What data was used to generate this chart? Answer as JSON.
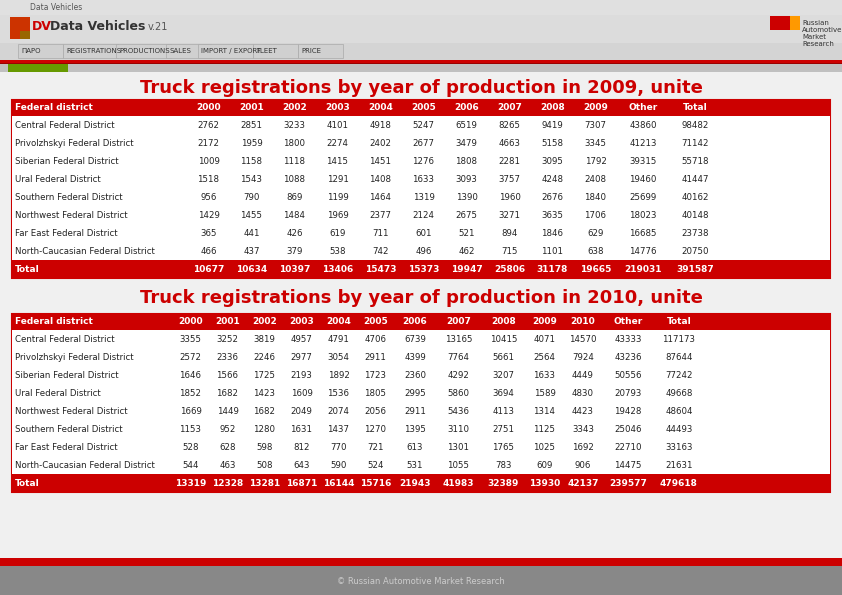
{
  "title1": "Truck registrations by year of production in 2009, unite",
  "title2": "Truck registrations by year of production in 2010, unite",
  "header_bg": "#CC0000",
  "header_text_color": "#FFFFFF",
  "total_bg": "#CC0000",
  "total_text_color": "#FFFFFF",
  "title_color": "#CC0000",
  "columns2009": [
    "Federal district",
    "2000",
    "2001",
    "2002",
    "2003",
    "2004",
    "2005",
    "2006",
    "2007",
    "2008",
    "2009",
    "Other",
    "Total"
  ],
  "columns2010": [
    "Federal district",
    "2000",
    "2001",
    "2002",
    "2003",
    "2004",
    "2005",
    "2006",
    "2007",
    "2008",
    "2009",
    "2010",
    "Other",
    "Total"
  ],
  "rows2009": [
    [
      "Central Federal District",
      "2762",
      "2851",
      "3233",
      "4101",
      "4918",
      "5247",
      "6519",
      "8265",
      "9419",
      "7307",
      "43860",
      "98482"
    ],
    [
      "Privolzhskyi Federal District",
      "2172",
      "1959",
      "1800",
      "2274",
      "2402",
      "2677",
      "3479",
      "4663",
      "5158",
      "3345",
      "41213",
      "71142"
    ],
    [
      "Siberian Federal District",
      "1009",
      "1158",
      "1118",
      "1415",
      "1451",
      "1276",
      "1808",
      "2281",
      "3095",
      "1792",
      "39315",
      "55718"
    ],
    [
      "Ural Federal District",
      "1518",
      "1543",
      "1088",
      "1291",
      "1408",
      "1633",
      "3093",
      "3757",
      "4248",
      "2408",
      "19460",
      "41447"
    ],
    [
      "Southern Federal District",
      "956",
      "790",
      "869",
      "1199",
      "1464",
      "1319",
      "1390",
      "1960",
      "2676",
      "1840",
      "25699",
      "40162"
    ],
    [
      "Northwest Federal District",
      "1429",
      "1455",
      "1484",
      "1969",
      "2377",
      "2124",
      "2675",
      "3271",
      "3635",
      "1706",
      "18023",
      "40148"
    ],
    [
      "Far East Federal District",
      "365",
      "441",
      "426",
      "619",
      "711",
      "601",
      "521",
      "894",
      "1846",
      "629",
      "16685",
      "23738"
    ],
    [
      "North-Caucasian Federal District",
      "466",
      "437",
      "379",
      "538",
      "742",
      "496",
      "462",
      "715",
      "1101",
      "638",
      "14776",
      "20750"
    ]
  ],
  "total2009": [
    "Total",
    "10677",
    "10634",
    "10397",
    "13406",
    "15473",
    "15373",
    "19947",
    "25806",
    "31178",
    "19665",
    "219031",
    "391587"
  ],
  "rows2010": [
    [
      "Central Federal District",
      "3355",
      "3252",
      "3819",
      "4957",
      "4791",
      "4706",
      "6739",
      "13165",
      "10415",
      "4071",
      "14570",
      "43333",
      "117173"
    ],
    [
      "Privolzhskyi Federal District",
      "2572",
      "2336",
      "2246",
      "2977",
      "3054",
      "2911",
      "4399",
      "7764",
      "5661",
      "2564",
      "7924",
      "43236",
      "87644"
    ],
    [
      "Siberian Federal District",
      "1646",
      "1566",
      "1725",
      "2193",
      "1892",
      "1723",
      "2360",
      "4292",
      "3207",
      "1633",
      "4449",
      "50556",
      "77242"
    ],
    [
      "Ural Federal District",
      "1852",
      "1682",
      "1423",
      "1609",
      "1536",
      "1805",
      "2995",
      "5860",
      "3694",
      "1589",
      "4830",
      "20793",
      "49668"
    ],
    [
      "Northwest Federal District",
      "1669",
      "1449",
      "1682",
      "2049",
      "2074",
      "2056",
      "2911",
      "5436",
      "4113",
      "1314",
      "4423",
      "19428",
      "48604"
    ],
    [
      "Southern Federal District",
      "1153",
      "952",
      "1280",
      "1631",
      "1437",
      "1270",
      "1395",
      "3110",
      "2751",
      "1125",
      "3343",
      "25046",
      "44493"
    ],
    [
      "Far East Federal District",
      "528",
      "628",
      "598",
      "812",
      "770",
      "721",
      "613",
      "1301",
      "1765",
      "1025",
      "1692",
      "22710",
      "33163"
    ],
    [
      "North-Caucasian Federal District",
      "544",
      "463",
      "508",
      "643",
      "590",
      "524",
      "531",
      "1055",
      "783",
      "609",
      "906",
      "14475",
      "21631"
    ]
  ],
  "total2010": [
    "Total",
    "13319",
    "12328",
    "13281",
    "16871",
    "16144",
    "15716",
    "21943",
    "41983",
    "32389",
    "13930",
    "42137",
    "239577",
    "479618"
  ],
  "footer_text": "© Russian Automotive Market Research",
  "col_widths_2009": [
    175,
    43,
    43,
    43,
    43,
    43,
    43,
    43,
    43,
    43,
    43,
    52,
    52
  ],
  "col_widths_2010": [
    160,
    37,
    37,
    37,
    37,
    37,
    37,
    42,
    45,
    45,
    37,
    40,
    50,
    52
  ]
}
